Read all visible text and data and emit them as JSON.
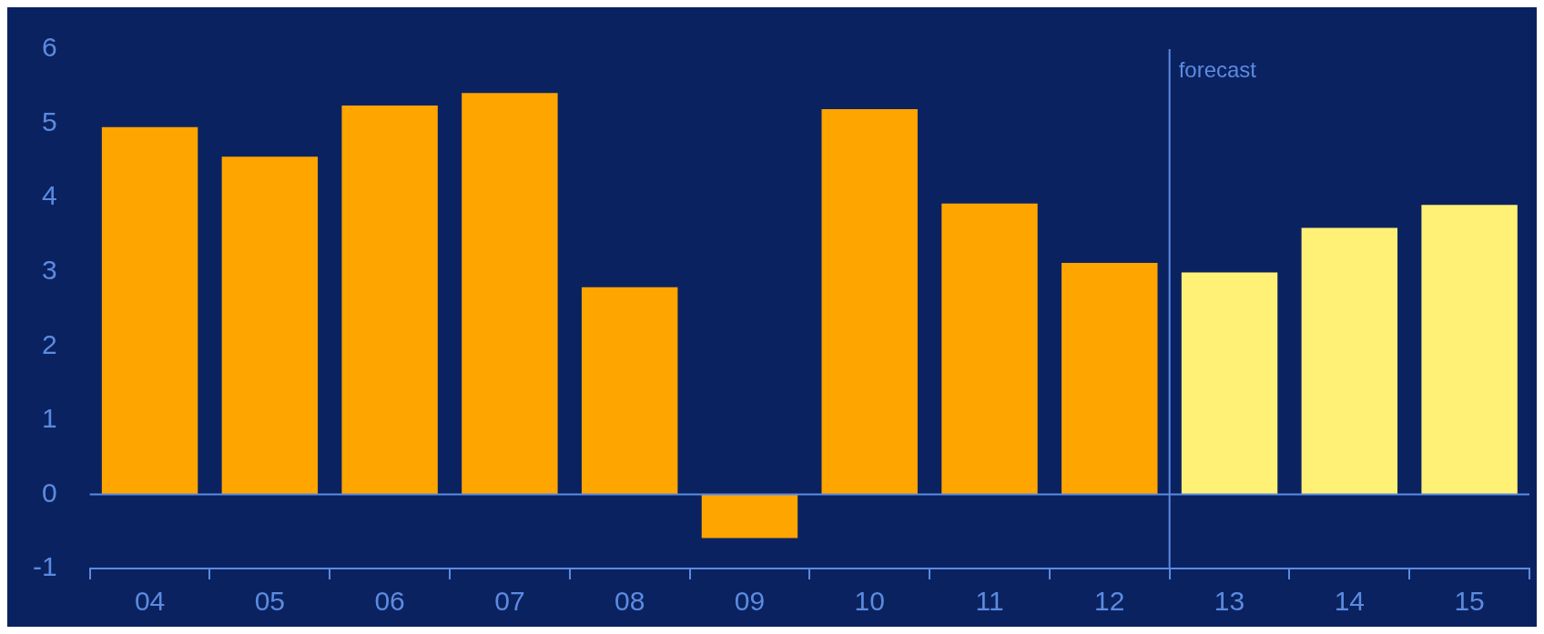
{
  "chart_data": {
    "type": "bar",
    "x": [
      4,
      5,
      6,
      7,
      8,
      9,
      10,
      11,
      12,
      13,
      14,
      15
    ],
    "values": [
      4.95,
      4.55,
      5.24,
      5.41,
      2.79,
      -0.59,
      5.19,
      3.92,
      3.12,
      2.99,
      3.59,
      3.9
    ],
    "colors": [
      "#ffa500",
      "#ffa500",
      "#ffa500",
      "#ffa500",
      "#ffa500",
      "#ffa500",
      "#ffa500",
      "#ffa500",
      "#ffa500",
      "#fff176",
      "#fff176",
      "#fff176"
    ],
    "xlim": [
      3.5,
      15.5
    ],
    "xticks": [
      {
        "value": 3.5,
        "label": null
      },
      {
        "value": 4,
        "label": "04"
      },
      {
        "value": 4.5,
        "label": null
      },
      {
        "value": 5,
        "label": "05"
      },
      {
        "value": 5.5,
        "label": null
      },
      {
        "value": 6,
        "label": "06"
      },
      {
        "value": 6.5,
        "label": null
      },
      {
        "value": 7,
        "label": "07"
      },
      {
        "value": 7.5,
        "label": null
      },
      {
        "value": 8,
        "label": "08"
      },
      {
        "value": 8.5,
        "label": null
      },
      {
        "value": 9,
        "label": "09"
      },
      {
        "value": 9.5,
        "label": null
      },
      {
        "value": 10,
        "label": "10"
      },
      {
        "value": 10.5,
        "label": null
      },
      {
        "value": 11,
        "label": "11"
      },
      {
        "value": 11.5,
        "label": null
      },
      {
        "value": 12,
        "label": "12"
      },
      {
        "value": 12.5,
        "label": null
      },
      {
        "value": 13,
        "label": "13"
      },
      {
        "value": 13.5,
        "label": null
      },
      {
        "value": 14,
        "label": "14"
      },
      {
        "value": 14.5,
        "label": null
      },
      {
        "value": 15,
        "label": "15"
      },
      {
        "value": 15.5,
        "label": null
      }
    ],
    "ylim": [
      -1,
      6
    ],
    "yticks": [
      -1,
      0,
      1,
      2,
      3,
      4,
      5,
      6
    ],
    "ref_lines": [
      {
        "axis": "x",
        "value": 12.5,
        "label": "forecast",
        "color": "#5b8be0"
      }
    ],
    "legend": false
  }
}
